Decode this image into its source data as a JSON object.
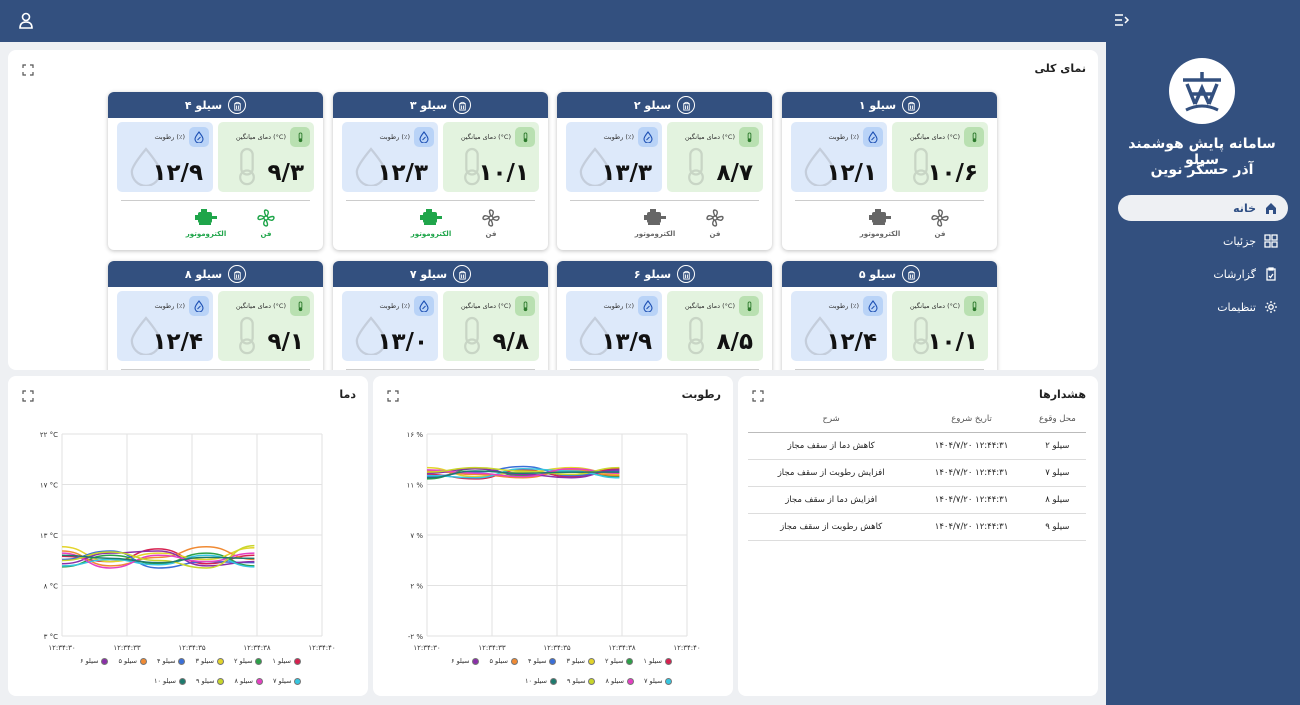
{
  "sidebar": {
    "title_line1": "سامانه پایش هوشمند سیلو",
    "title_line2": "آذر حسگر نوین",
    "nav": [
      {
        "label": "خانه",
        "icon": "home-icon",
        "active": true
      },
      {
        "label": "جزئیات",
        "icon": "grid-icon",
        "active": false
      },
      {
        "label": "گزارشات",
        "icon": "clipboard-icon",
        "active": false
      },
      {
        "label": "تنظیمات",
        "icon": "gear-icon",
        "active": false
      }
    ]
  },
  "overview": {
    "title": "نمای کلی",
    "temp_label": "دمای میانگین (°C)",
    "hum_label": "رطوبت (٪)",
    "fan_label": "فن",
    "motor_label": "الکتروموتور",
    "silos": [
      {
        "name": "سیلو ۱",
        "temp": "۱۰/۶",
        "hum": "۱۲/۱",
        "fan_on": false,
        "motor_on": false
      },
      {
        "name": "سیلو ۲",
        "temp": "۸/۷",
        "hum": "۱۳/۳",
        "fan_on": false,
        "motor_on": false
      },
      {
        "name": "سیلو ۳",
        "temp": "۱۰/۱",
        "hum": "۱۲/۳",
        "fan_on": false,
        "motor_on": true
      },
      {
        "name": "سیلو ۴",
        "temp": "۹/۳",
        "hum": "۱۲/۹",
        "fan_on": true,
        "motor_on": true
      },
      {
        "name": "سیلو ۵",
        "temp": "۱۰/۱",
        "hum": "۱۲/۴"
      },
      {
        "name": "سیلو ۶",
        "temp": "۸/۵",
        "hum": "۱۳/۹"
      },
      {
        "name": "سیلو ۷",
        "temp": "۹/۸",
        "hum": "۱۳/۰"
      },
      {
        "name": "سیلو ۸",
        "temp": "۹/۱",
        "hum": "۱۲/۴"
      }
    ]
  },
  "alerts": {
    "title": "هشدارها",
    "headers": [
      "محل وقوع",
      "تاریخ شروع",
      "شرح"
    ],
    "rows": [
      [
        "سیلو ۲",
        "۱۴۰۴/۷/۲۰  ۱۲:۴۴:۳۱",
        "کاهش دما از سقف مجاز"
      ],
      [
        "سیلو ۷",
        "۱۴۰۴/۷/۲۰  ۱۲:۴۴:۳۱",
        "افزایش رطوبت از سقف مجاز"
      ],
      [
        "سیلو ۸",
        "۱۴۰۴/۷/۲۰  ۱۲:۴۴:۳۱",
        "افزایش دما از سقف مجاز"
      ],
      [
        "سیلو ۹",
        "۱۴۰۴/۷/۲۰  ۱۲:۴۴:۳۱",
        "کاهش رطوبت از سقف مجاز"
      ]
    ]
  },
  "legend_row1": [
    "سیلو ۱",
    "سیلو ۲",
    "سیلو ۳",
    "سیلو ۴",
    "سیلو ۵",
    "سیلو ۶"
  ],
  "legend_row2": [
    "سیلو ۷",
    "سیلو ۸",
    "سیلو ۹",
    "سیلو ۱۰"
  ],
  "series_colors": [
    "#d6204f",
    "#2ca048",
    "#e3d42a",
    "#3a6fd8",
    "#f08a33",
    "#8a2fa8",
    "#36c6e0",
    "#e53fc2",
    "#c8d62a",
    "#1d7a6e"
  ],
  "chart_data": [
    {
      "type": "line",
      "title": "دما",
      "x": [
        "۱۲:۳۴:۳۰",
        "۱۲:۳۴:۳۳",
        "۱۲:۳۴:۳۵",
        "۱۲:۳۴:۳۸",
        "۱۲:۳۴:۴۰"
      ],
      "ytick_labels": [
        "۳ °C",
        "۸ °C",
        "۱۳ °C",
        "۱۷ °C",
        "۲۲ °C"
      ],
      "ylim": [
        3,
        22
      ],
      "series": [
        {
          "name": "سیلو ۱",
          "values": [
            10.5,
            10.0,
            11.2,
            9.8,
            10.6
          ]
        },
        {
          "name": "سیلو ۲",
          "values": [
            9.5,
            10.6,
            9.8,
            10.8,
            9.6
          ]
        },
        {
          "name": "سیلو ۳",
          "values": [
            11.4,
            10.0,
            10.8,
            10.2,
            11.3
          ]
        },
        {
          "name": "سیلو ۴",
          "values": [
            10.2,
            11.0,
            9.4,
            10.0,
            9.9
          ]
        },
        {
          "name": "سیلو ۵",
          "values": [
            11.0,
            9.6,
            10.4,
            11.4,
            10.2
          ]
        },
        {
          "name": "سیلو ۶",
          "values": [
            9.8,
            10.8,
            11.0,
            9.6,
            10.0
          ]
        },
        {
          "name": "سیلو ۷",
          "values": [
            9.6,
            10.2,
            9.7,
            10.6,
            9.5
          ]
        },
        {
          "name": "سیلو ۸",
          "values": [
            10.8,
            9.4,
            10.6,
            10.0,
            10.8
          ]
        },
        {
          "name": "سیلو ۹",
          "values": [
            10.1,
            10.9,
            10.1,
            9.4,
            11.5
          ]
        },
        {
          "name": "سیلو ۱۰",
          "values": [
            10.6,
            10.3,
            9.9,
            10.4,
            10.3
          ]
        }
      ]
    },
    {
      "type": "line",
      "title": "رطوبت",
      "x": [
        "۱۲:۳۴:۳۰",
        "۱۲:۳۴:۳۳",
        "۱۲:۳۴:۳۵",
        "۱۲:۳۴:۳۸",
        "۱۲:۳۴:۴۰"
      ],
      "ytick_labels": [
        "-۲ %",
        "۲ %",
        "۷ %",
        "۱۱ %",
        "۱۶ %"
      ],
      "ylim": [
        -2,
        16
      ],
      "series": [
        {
          "name": "سیلو ۱",
          "values": [
            12.4,
            12.0,
            12.8,
            12.2,
            12.9
          ]
        },
        {
          "name": "سیلو ۲",
          "values": [
            12.0,
            12.9,
            12.3,
            12.6,
            12.2
          ]
        },
        {
          "name": "سیلو ۳",
          "values": [
            13.0,
            12.2,
            12.6,
            13.0,
            12.4
          ]
        },
        {
          "name": "سیلو ۴",
          "values": [
            12.2,
            12.6,
            13.1,
            12.3,
            12.7
          ]
        },
        {
          "name": "سیلو ۵",
          "values": [
            12.7,
            12.4,
            12.1,
            12.8,
            12.3
          ]
        },
        {
          "name": "سیلو ۶",
          "values": [
            12.5,
            12.9,
            12.4,
            12.1,
            12.8
          ]
        },
        {
          "name": "سیلو ۷",
          "values": [
            12.3,
            12.1,
            12.9,
            12.7,
            12.1
          ]
        },
        {
          "name": "سیلو ۸",
          "values": [
            12.8,
            12.5,
            12.2,
            12.9,
            12.5
          ]
        },
        {
          "name": "سیلو ۹",
          "values": [
            12.6,
            13.0,
            12.7,
            12.4,
            13.0
          ]
        },
        {
          "name": "سیلو ۱۰",
          "values": [
            12.1,
            12.7,
            12.5,
            12.6,
            12.6
          ]
        }
      ]
    }
  ]
}
